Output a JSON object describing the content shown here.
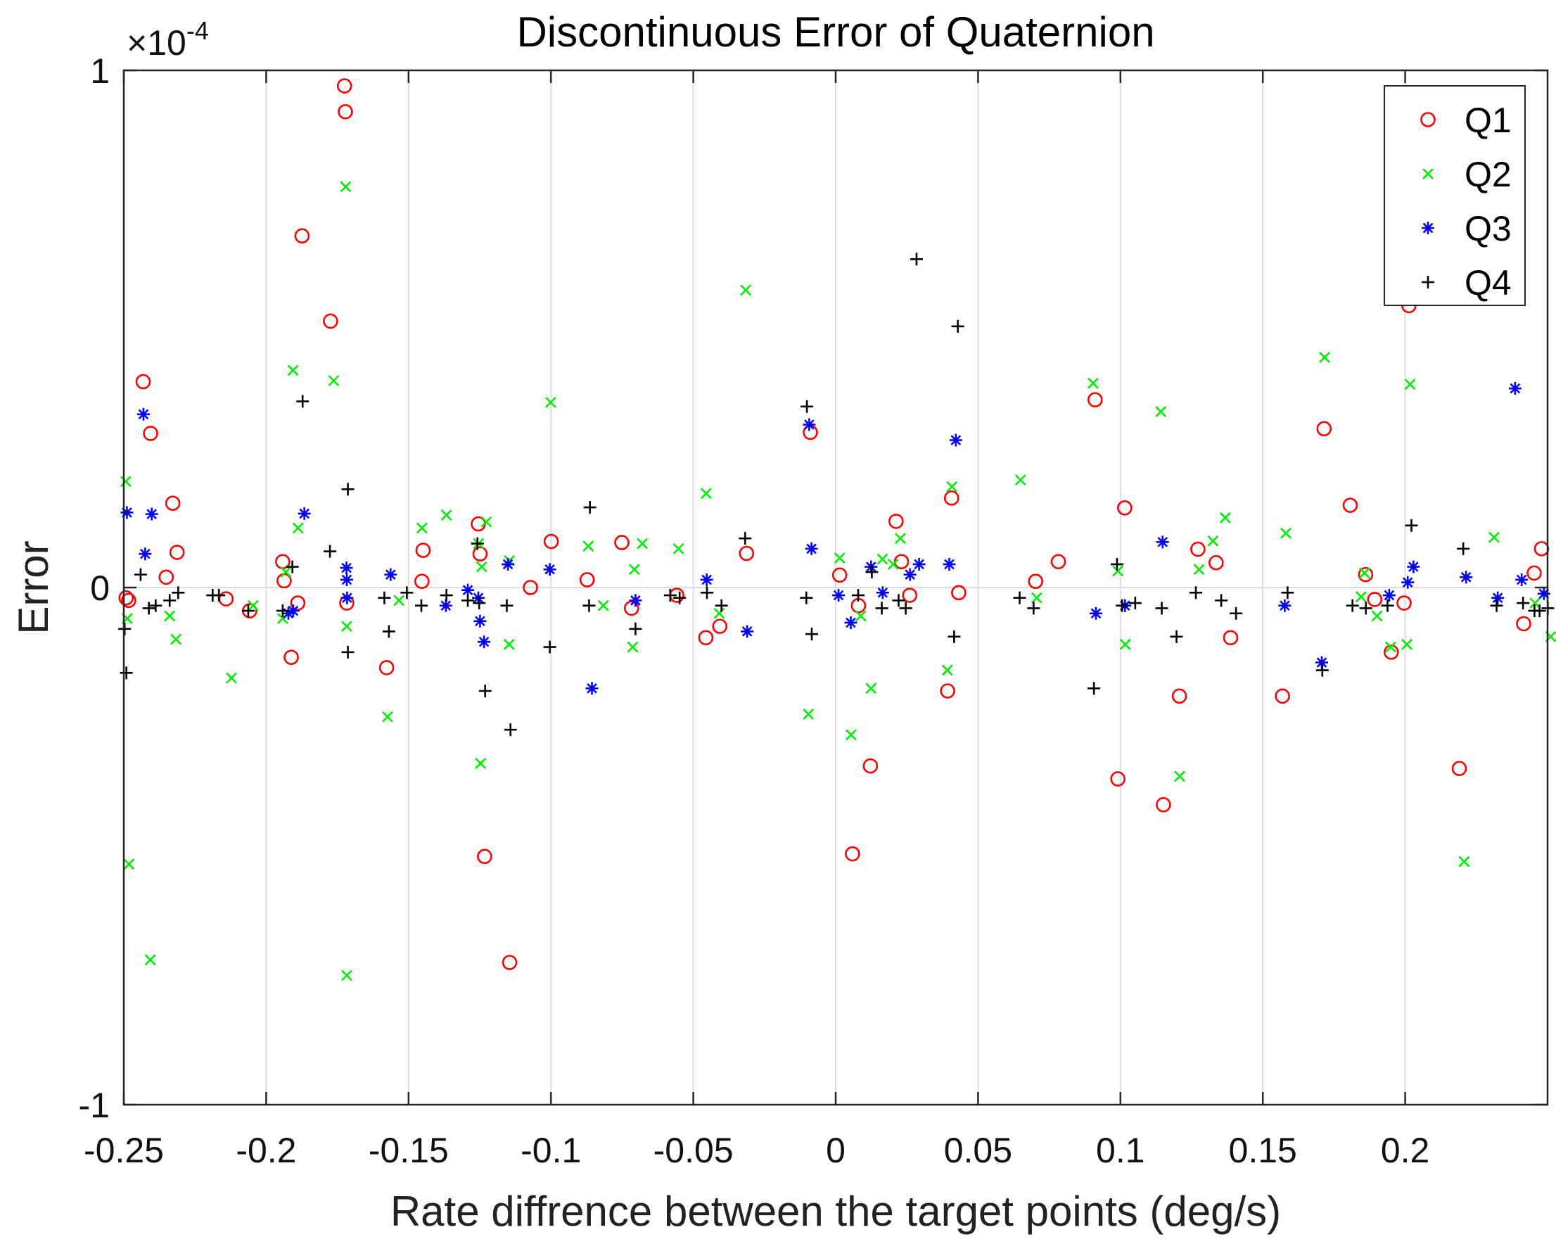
{
  "chart_data": {
    "type": "scatter",
    "title": "Discontinuous Error of Quaternion",
    "xlabel": "Rate diffrence between the target points (deg/s)",
    "ylabel": "Error",
    "exponent_label": "×10",
    "exponent_power": "-4",
    "xlim": [
      -0.25,
      0.25
    ],
    "ylim": [
      -1,
      1
    ],
    "grid": "vertical",
    "legend_position": "top-right",
    "x_ticks": [
      -0.25,
      -0.2,
      -0.15,
      -0.1,
      -0.05,
      0,
      0.05,
      0.1,
      0.15,
      0.2
    ],
    "x_tick_labels": [
      "-0.25",
      "-0.2",
      "-0.15",
      "-0.1",
      "-0.05",
      "0",
      "0.05",
      "0.1",
      "0.15",
      "0.2"
    ],
    "y_ticks": [
      -1,
      0,
      1
    ],
    "y_tick_labels": [
      "-1",
      "0",
      "1"
    ],
    "series": [
      {
        "name": "Q1",
        "marker": "circle",
        "color": "#ff0000",
        "points": [
          [
            -0.2492,
            -0.02
          ],
          [
            -0.2483,
            -0.025
          ],
          [
            -0.2432,
            0.398
          ],
          [
            -0.2406,
            0.298
          ],
          [
            -0.2351,
            0.02
          ],
          [
            -0.2328,
            0.163
          ],
          [
            -0.2313,
            0.068
          ],
          [
            -0.2141,
            -0.022
          ],
          [
            -0.2058,
            -0.045
          ],
          [
            -0.1942,
            0.05
          ],
          [
            -0.1937,
            0.013
          ],
          [
            -0.1912,
            -0.135
          ],
          [
            -0.1889,
            -0.03
          ],
          [
            -0.1874,
            0.68
          ],
          [
            -0.1774,
            0.515
          ],
          [
            -0.1725,
            0.97
          ],
          [
            -0.1722,
            0.92
          ],
          [
            -0.1717,
            -0.03
          ],
          [
            -0.1577,
            -0.155
          ],
          [
            -0.1453,
            0.012
          ],
          [
            -0.1449,
            0.072
          ],
          [
            -0.1255,
            0.123
          ],
          [
            -0.1249,
            0.065
          ],
          [
            -0.1233,
            -0.52
          ],
          [
            -0.1145,
            -0.725
          ],
          [
            -0.1072,
            0.0
          ],
          [
            -0.0999,
            0.089
          ],
          [
            -0.0873,
            0.015
          ],
          [
            -0.0751,
            0.087
          ],
          [
            -0.0717,
            -0.04
          ],
          [
            -0.0558,
            -0.015
          ],
          [
            -0.0456,
            -0.097
          ],
          [
            -0.0407,
            -0.075
          ],
          [
            -0.0313,
            0.066
          ],
          [
            -0.0089,
            0.3
          ],
          [
            0.0014,
            0.024
          ],
          [
            0.0059,
            -0.515
          ],
          [
            0.008,
            -0.035
          ],
          [
            0.0122,
            -0.345
          ],
          [
            0.0212,
            0.128
          ],
          [
            0.0231,
            0.05
          ],
          [
            0.026,
            -0.015
          ],
          [
            0.0393,
            -0.2
          ],
          [
            0.0407,
            0.173
          ],
          [
            0.0432,
            -0.01
          ],
          [
            0.0702,
            0.012
          ],
          [
            0.0782,
            0.05
          ],
          [
            0.0911,
            0.363
          ],
          [
            0.0991,
            -0.37
          ],
          [
            0.1015,
            0.154
          ],
          [
            0.1151,
            -0.42
          ],
          [
            0.1207,
            -0.21
          ],
          [
            0.1272,
            0.074
          ],
          [
            0.1336,
            0.048
          ],
          [
            0.1387,
            -0.097
          ],
          [
            0.1569,
            -0.21
          ],
          [
            0.1715,
            0.307
          ],
          [
            0.1807,
            0.159
          ],
          [
            0.1861,
            0.025
          ],
          [
            0.1893,
            -0.023
          ],
          [
            0.1951,
            -0.125
          ],
          [
            0.1996,
            -0.03
          ],
          [
            0.2013,
            0.545
          ],
          [
            0.219,
            -0.35
          ],
          [
            0.2416,
            -0.07
          ],
          [
            0.2453,
            0.028
          ],
          [
            0.2479,
            0.075
          ]
        ]
      },
      {
        "name": "Q2",
        "marker": "x",
        "color": "#00ee00",
        "points": [
          [
            -0.2493,
            0.205
          ],
          [
            -0.2488,
            -0.06
          ],
          [
            -0.2482,
            -0.535
          ],
          [
            -0.2407,
            -0.72
          ],
          [
            -0.2339,
            -0.055
          ],
          [
            -0.2317,
            -0.1
          ],
          [
            -0.2122,
            -0.175
          ],
          [
            -0.2046,
            -0.035
          ],
          [
            -0.1942,
            -0.06
          ],
          [
            -0.1931,
            0.03
          ],
          [
            -0.1906,
            0.42
          ],
          [
            -0.1888,
            0.115
          ],
          [
            -0.1763,
            0.4
          ],
          [
            -0.1721,
            0.775
          ],
          [
            -0.1717,
            -0.75
          ],
          [
            -0.1717,
            -0.075
          ],
          [
            -0.1574,
            -0.25
          ],
          [
            -0.1534,
            -0.025
          ],
          [
            -0.1453,
            0.115
          ],
          [
            -0.1367,
            0.14
          ],
          [
            -0.1254,
            0.085
          ],
          [
            -0.1243,
            0.04
          ],
          [
            -0.1247,
            -0.34
          ],
          [
            -0.1227,
            0.127
          ],
          [
            -0.1147,
            -0.11
          ],
          [
            -0.1146,
            0.052
          ],
          [
            -0.1001,
            0.358
          ],
          [
            -0.0869,
            0.08
          ],
          [
            -0.0816,
            -0.035
          ],
          [
            -0.0713,
            -0.115
          ],
          [
            -0.0707,
            0.035
          ],
          [
            -0.0679,
            0.085
          ],
          [
            -0.0552,
            0.075
          ],
          [
            -0.0455,
            0.182
          ],
          [
            -0.0409,
            -0.05
          ],
          [
            -0.0316,
            0.575
          ],
          [
            -0.0096,
            -0.245
          ],
          [
            0.0014,
            0.057
          ],
          [
            0.0054,
            -0.285
          ],
          [
            0.0088,
            -0.055
          ],
          [
            0.0124,
            -0.195
          ],
          [
            0.0164,
            0.055
          ],
          [
            0.0202,
            0.045
          ],
          [
            0.0227,
            0.095
          ],
          [
            0.0392,
            -0.16
          ],
          [
            0.0408,
            0.195
          ],
          [
            0.0649,
            0.208
          ],
          [
            0.0706,
            -0.02
          ],
          [
            0.0904,
            0.395
          ],
          [
            0.0991,
            0.032
          ],
          [
            0.1017,
            -0.11
          ],
          [
            0.1142,
            0.34
          ],
          [
            0.1208,
            -0.365
          ],
          [
            0.1276,
            0.035
          ],
          [
            0.1325,
            0.09
          ],
          [
            0.1368,
            0.135
          ],
          [
            0.1581,
            0.105
          ],
          [
            0.1717,
            0.445
          ],
          [
            0.1845,
            -0.018
          ],
          [
            0.1857,
            0.028
          ],
          [
            0.1901,
            -0.055
          ],
          [
            0.1949,
            -0.115
          ],
          [
            0.2006,
            -0.11
          ],
          [
            0.2017,
            0.393
          ],
          [
            0.2207,
            -0.53
          ],
          [
            0.2312,
            0.097
          ],
          [
            0.2456,
            -0.03
          ],
          [
            0.2511,
            -0.095
          ]
        ]
      },
      {
        "name": "Q3",
        "marker": "asterisk",
        "color": "#0000ff",
        "points": [
          [
            -0.2489,
            0.145
          ],
          [
            -0.2431,
            0.335
          ],
          [
            -0.2402,
            0.142
          ],
          [
            -0.2425,
            0.065
          ],
          [
            -0.1905,
            -0.045
          ],
          [
            -0.1922,
            -0.05
          ],
          [
            -0.1866,
            0.143
          ],
          [
            -0.1718,
            0.038
          ],
          [
            -0.1717,
            0.015
          ],
          [
            -0.1716,
            -0.02
          ],
          [
            -0.1563,
            0.025
          ],
          [
            -0.1369,
            -0.035
          ],
          [
            -0.1292,
            -0.005
          ],
          [
            -0.1255,
            -0.02
          ],
          [
            -0.1249,
            -0.065
          ],
          [
            -0.1235,
            -0.105
          ],
          [
            -0.1151,
            0.045
          ],
          [
            -0.1004,
            0.035
          ],
          [
            -0.0856,
            -0.195
          ],
          [
            -0.0703,
            -0.025
          ],
          [
            -0.0453,
            0.015
          ],
          [
            -0.0311,
            -0.085
          ],
          [
            -0.0093,
            0.315
          ],
          [
            -0.0085,
            0.075
          ],
          [
            0.001,
            -0.015
          ],
          [
            0.0053,
            -0.068
          ],
          [
            0.0124,
            0.04
          ],
          [
            0.0165,
            -0.01
          ],
          [
            0.0261,
            0.025
          ],
          [
            0.0293,
            0.045
          ],
          [
            0.0399,
            0.045
          ],
          [
            0.0422,
            0.285
          ],
          [
            0.0914,
            -0.05
          ],
          [
            0.1016,
            -0.035
          ],
          [
            0.1148,
            0.088
          ],
          [
            0.1577,
            -0.035
          ],
          [
            0.1707,
            -0.145
          ],
          [
            0.1944,
            -0.015
          ],
          [
            0.2009,
            0.01
          ],
          [
            0.2029,
            0.04
          ],
          [
            0.2214,
            0.02
          ],
          [
            0.2325,
            -0.02
          ],
          [
            0.2386,
            0.385
          ],
          [
            0.2409,
            0.015
          ],
          [
            0.2487,
            -0.012
          ]
        ]
      },
      {
        "name": "Q4",
        "marker": "plus",
        "color": "#000000",
        "points": [
          [
            -0.2497,
            -0.08
          ],
          [
            -0.2491,
            -0.165
          ],
          [
            -0.2441,
            0.025
          ],
          [
            -0.2412,
            -0.04
          ],
          [
            -0.2388,
            -0.035
          ],
          [
            -0.2339,
            -0.025
          ],
          [
            -0.2309,
            -0.01
          ],
          [
            -0.2188,
            -0.015
          ],
          [
            -0.2166,
            -0.015
          ],
          [
            -0.2063,
            -0.045
          ],
          [
            -0.1942,
            -0.045
          ],
          [
            -0.1908,
            0.04
          ],
          [
            -0.1872,
            0.36
          ],
          [
            -0.1776,
            0.07
          ],
          [
            -0.1713,
            0.19
          ],
          [
            -0.1713,
            -0.125
          ],
          [
            -0.1585,
            -0.02
          ],
          [
            -0.1569,
            -0.085
          ],
          [
            -0.1506,
            -0.01
          ],
          [
            -0.1455,
            -0.035
          ],
          [
            -0.1367,
            -0.015
          ],
          [
            -0.1292,
            -0.025
          ],
          [
            -0.1258,
            0.085
          ],
          [
            -0.1252,
            -0.03
          ],
          [
            -0.1231,
            -0.2
          ],
          [
            -0.1155,
            -0.035
          ],
          [
            -0.1142,
            -0.275
          ],
          [
            -0.1004,
            -0.115
          ],
          [
            -0.0863,
            0.155
          ],
          [
            -0.0866,
            -0.035
          ],
          [
            -0.0703,
            -0.08
          ],
          [
            -0.0581,
            -0.015
          ],
          [
            -0.0548,
            -0.02
          ],
          [
            -0.0452,
            -0.01
          ],
          [
            -0.0401,
            -0.035
          ],
          [
            -0.0318,
            0.095
          ],
          [
            -0.0101,
            0.35
          ],
          [
            -0.0103,
            -0.02
          ],
          [
            -0.0084,
            -0.09
          ],
          [
            0.0079,
            -0.015
          ],
          [
            0.0127,
            0.03
          ],
          [
            0.0162,
            -0.04
          ],
          [
            0.0221,
            -0.025
          ],
          [
            0.0246,
            -0.04
          ],
          [
            0.0284,
            0.635
          ],
          [
            0.0416,
            -0.095
          ],
          [
            0.0429,
            0.505
          ],
          [
            0.0646,
            -0.02
          ],
          [
            0.0695,
            -0.04
          ],
          [
            0.0907,
            -0.195
          ],
          [
            0.0988,
            0.045
          ],
          [
            0.1006,
            -0.035
          ],
          [
            0.1052,
            -0.03
          ],
          [
            0.1145,
            -0.04
          ],
          [
            0.1197,
            -0.095
          ],
          [
            0.1265,
            -0.01
          ],
          [
            0.1354,
            -0.025
          ],
          [
            0.1406,
            -0.05
          ],
          [
            0.1587,
            -0.01
          ],
          [
            0.1709,
            -0.16
          ],
          [
            0.1815,
            -0.035
          ],
          [
            0.1862,
            -0.04
          ],
          [
            0.1938,
            -0.035
          ],
          [
            0.2022,
            0.12
          ],
          [
            0.2204,
            0.075
          ],
          [
            0.2321,
            -0.035
          ],
          [
            0.2414,
            -0.03
          ],
          [
            0.2454,
            -0.045
          ],
          [
            0.2472,
            -0.045
          ],
          [
            0.2501,
            -0.04
          ]
        ]
      }
    ]
  }
}
